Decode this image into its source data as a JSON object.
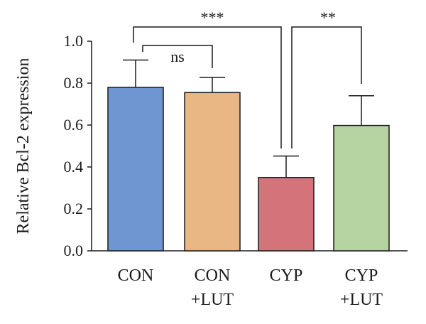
{
  "chart_data": {
    "type": "bar",
    "categories": [
      [
        "CON"
      ],
      [
        "CON",
        "+LUT"
      ],
      [
        "CYP"
      ],
      [
        "CYP",
        "+LUT"
      ]
    ],
    "values": [
      0.78,
      0.755,
      0.35,
      0.598
    ],
    "errors": [
      0.13,
      0.072,
      0.102,
      0.142
    ],
    "colors": [
      "#6f96d0",
      "#e9b784",
      "#d5737a",
      "#b5d4a1"
    ],
    "ylabel": "Relative Bcl-2 expression",
    "ylim": [
      0,
      1.0
    ],
    "yticks": [
      {
        "value": 0,
        "label": "0.0"
      },
      {
        "value": 0.2,
        "label": "0.2"
      },
      {
        "value": 0.4,
        "label": "0.4"
      },
      {
        "value": 0.6,
        "label": "0.6"
      },
      {
        "value": 0.8,
        "label": "0.8"
      },
      {
        "value": 1.0,
        "label": "1.0"
      }
    ],
    "significance": [
      {
        "from": 0,
        "to": 1,
        "label": "ns"
      },
      {
        "from": 0,
        "to": 2,
        "label": "***"
      },
      {
        "from": 2,
        "to": 3,
        "label": "**"
      }
    ],
    "grid": false
  }
}
